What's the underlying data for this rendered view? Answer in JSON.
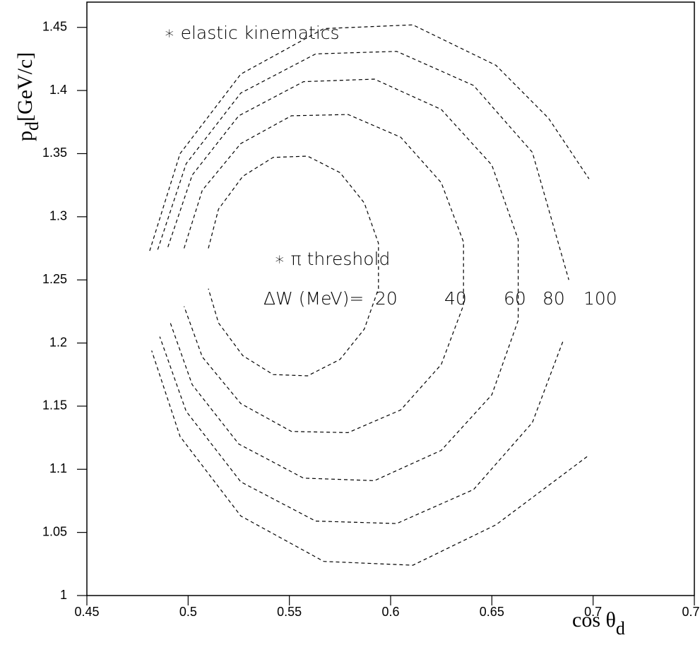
{
  "chart_data": {
    "type": "line",
    "xlabel": {
      "main": "cos  θ",
      "sub": "d"
    },
    "ylabel": {
      "main": "p",
      "sub": "d",
      "unit": "[GeV/c]"
    },
    "xlim": [
      0.45,
      0.75
    ],
    "ylim": [
      1,
      1.47
    ],
    "xticks": [
      0.45,
      0.5,
      0.55,
      0.6,
      0.65,
      0.7,
      0.75
    ],
    "yticks": [
      1,
      1.05,
      1.1,
      1.15,
      1.2,
      1.25,
      1.3,
      1.35,
      1.4,
      1.45
    ],
    "annotations": [
      "∗  elastic kinematics",
      "∗ π threshold",
      "ΔW (MeV)="
    ],
    "series": [
      {
        "name": "20",
        "color": "#000000",
        "x": [
          0.51,
          0.515,
          0.527,
          0.542,
          0.559,
          0.575,
          0.587,
          0.594,
          0.594,
          0.587,
          0.575,
          0.559,
          0.542,
          0.527,
          0.515,
          0.51
        ],
        "values": [
          1.275,
          1.306,
          1.332,
          1.347,
          1.348,
          1.335,
          1.311,
          1.279,
          1.243,
          1.211,
          1.187,
          1.174,
          1.175,
          1.19,
          1.216,
          1.243
        ]
      },
      {
        "name": "40",
        "color": "#000000",
        "x": [
          0.498,
          0.507,
          0.526,
          0.551,
          0.579,
          0.605,
          0.625,
          0.636,
          0.636,
          0.625,
          0.605,
          0.579,
          0.551,
          0.526,
          0.507,
          0.498
        ],
        "values": [
          1.275,
          1.321,
          1.358,
          1.38,
          1.381,
          1.363,
          1.327,
          1.28,
          1.23,
          1.183,
          1.147,
          1.129,
          1.13,
          1.152,
          1.189,
          1.229
        ]
      },
      {
        "name": "60",
        "color": "#000000",
        "x": [
          0.49,
          0.502,
          0.525,
          0.557,
          0.592,
          0.625,
          0.65,
          0.663,
          0.663,
          0.65,
          0.625,
          0.592,
          0.557,
          0.525,
          0.502,
          0.491
        ],
        "values": [
          1.276,
          1.333,
          1.38,
          1.407,
          1.409,
          1.385,
          1.341,
          1.282,
          1.218,
          1.159,
          1.115,
          1.091,
          1.093,
          1.12,
          1.167,
          1.217
        ]
      },
      {
        "name": "80",
        "color": "#000000",
        "x": [
          0.485,
          0.499,
          0.526,
          0.563,
          0.603,
          0.641,
          0.67,
          0.688,
          null,
          0.685,
          0.67,
          0.641,
          0.603,
          0.563,
          0.526,
          0.499,
          0.486
        ],
        "values": [
          1.274,
          1.342,
          1.398,
          1.429,
          1.431,
          1.404,
          1.351,
          1.25,
          null,
          1.201,
          1.137,
          1.084,
          1.057,
          1.059,
          1.09,
          1.146,
          1.205
        ]
      },
      {
        "name": "100",
        "color": "#000000",
        "x": [
          0.481,
          0.496,
          0.526,
          0.567,
          0.611,
          0.652,
          0.678,
          0.698,
          null,
          0.697,
          0.652,
          0.611,
          0.567,
          0.526,
          0.496,
          0.482
        ],
        "values": [
          1.273,
          1.35,
          1.413,
          1.449,
          1.452,
          1.42,
          1.378,
          1.33,
          null,
          1.11,
          1.056,
          1.024,
          1.027,
          1.063,
          1.126,
          1.194
        ]
      }
    ]
  }
}
